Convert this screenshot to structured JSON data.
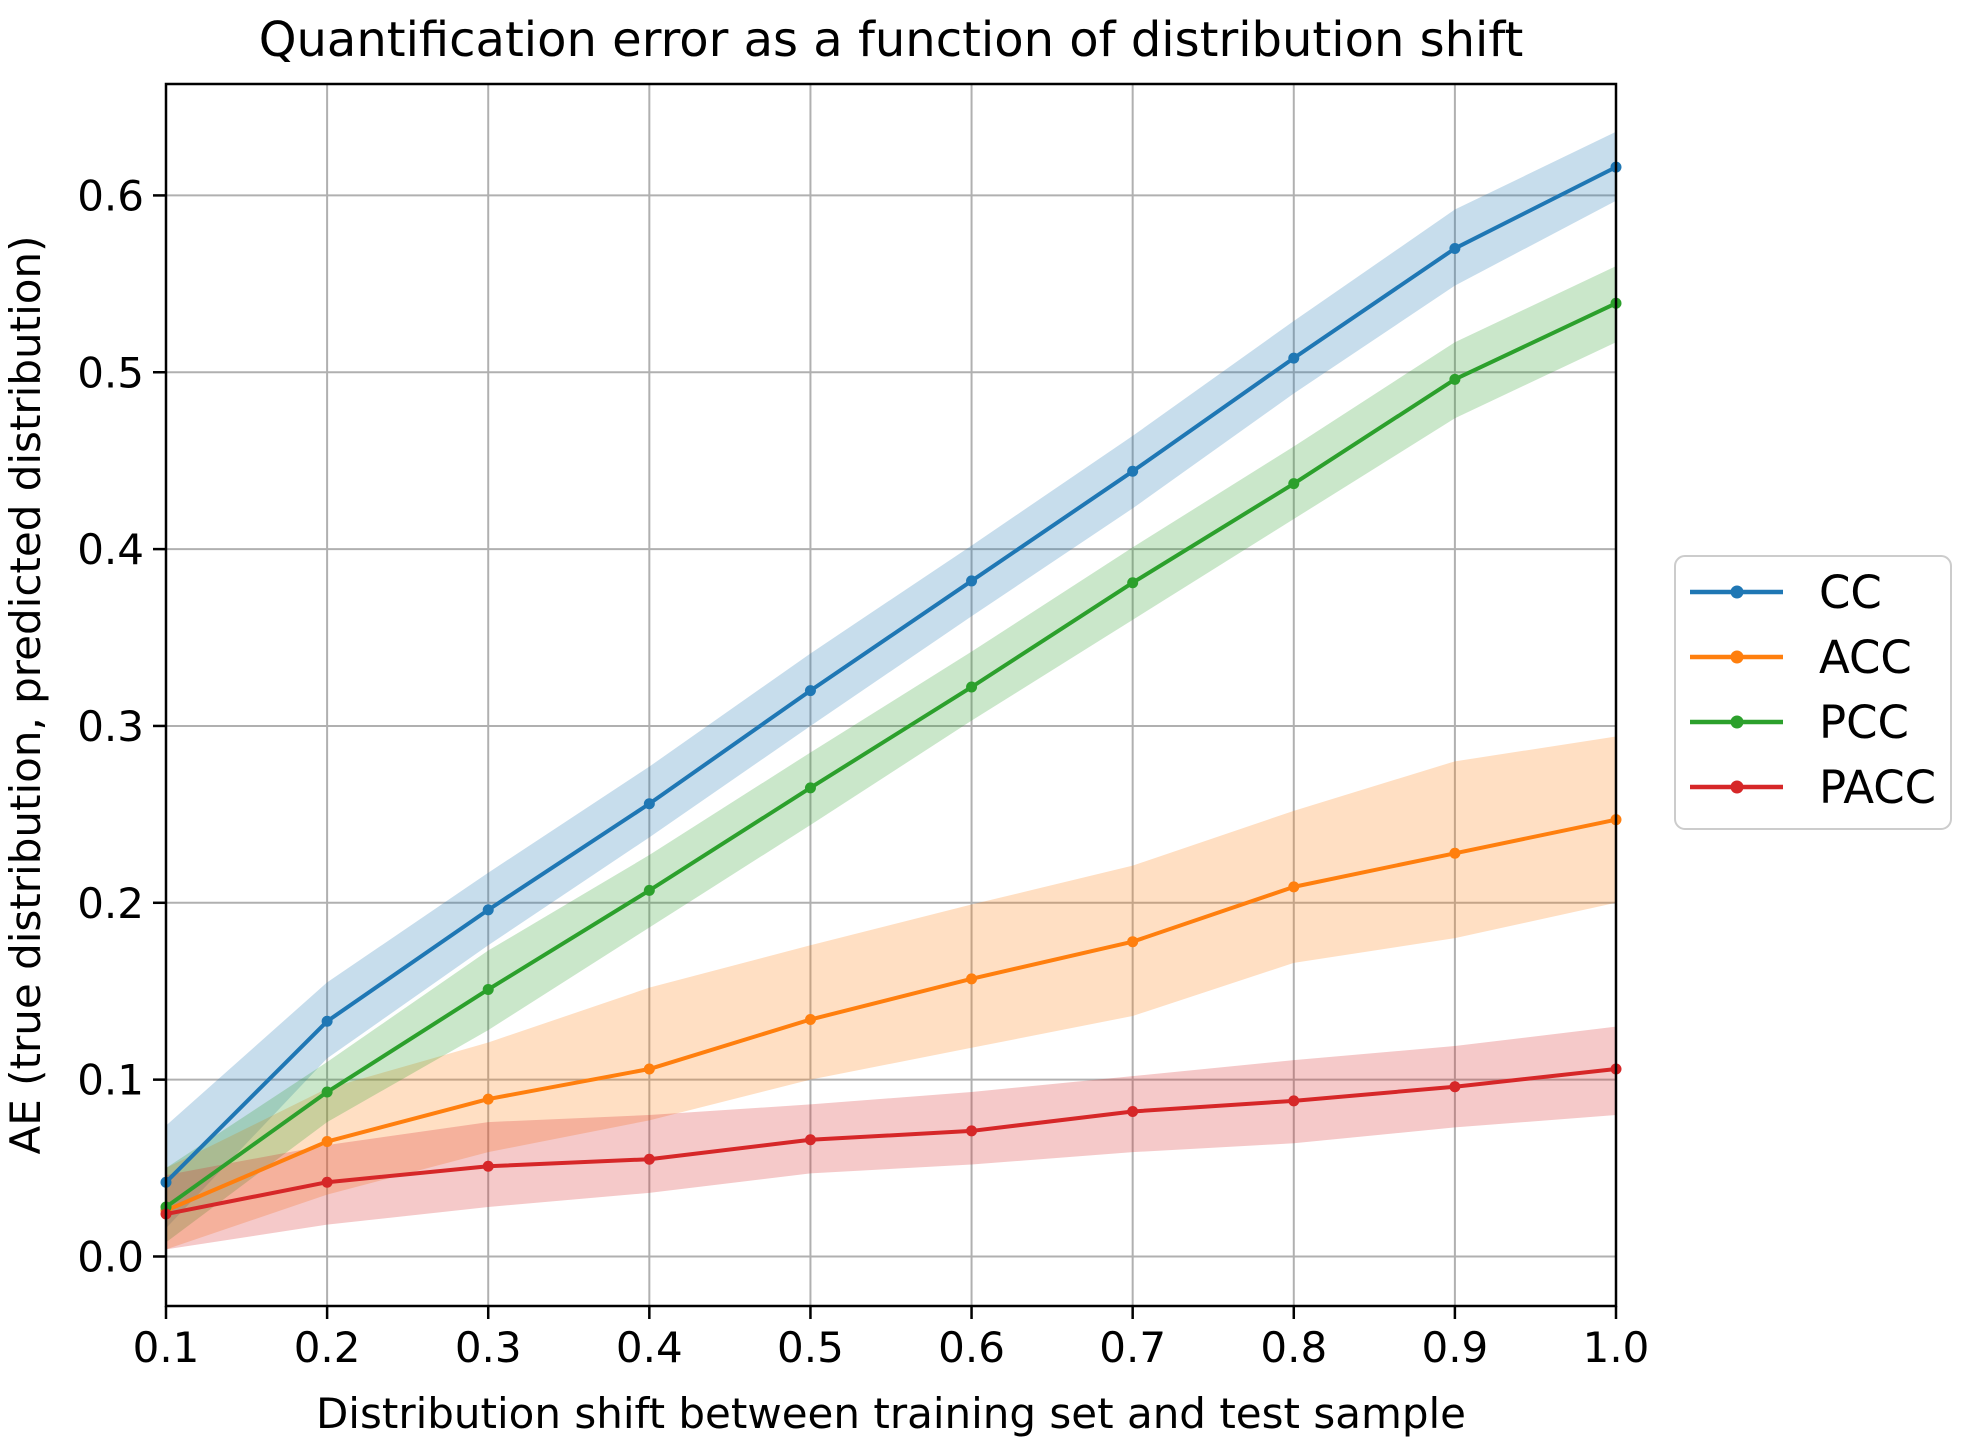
{
  "chart_data": {
    "type": "line",
    "title": "Quantification error as a function of distribution shift",
    "xlabel": "Distribution shift between training set and test sample",
    "ylabel": "AE (true distribution, predicted distribution)",
    "x": [
      0.1,
      0.2,
      0.3,
      0.4,
      0.5,
      0.6,
      0.7,
      0.8,
      0.9,
      1.0
    ],
    "xlim": [
      0.1,
      1.0
    ],
    "ylim": [
      -0.028,
      0.663
    ],
    "grid": true,
    "xticks": {
      "values": [
        0.1,
        0.2,
        0.3,
        0.4,
        0.5,
        0.6,
        0.7,
        0.8,
        0.9,
        1.0
      ],
      "labels": [
        "0.1",
        "0.2",
        "0.3",
        "0.4",
        "0.5",
        "0.6",
        "0.7",
        "0.8",
        "0.9",
        "1.0"
      ]
    },
    "yticks": {
      "values": [
        0.0,
        0.1,
        0.2,
        0.3,
        0.4,
        0.5,
        0.6
      ],
      "labels": [
        "0.0",
        "0.1",
        "0.2",
        "0.3",
        "0.4",
        "0.5",
        "0.6"
      ]
    },
    "series": [
      {
        "name": "CC",
        "color": "#1f77b4",
        "values": [
          0.042,
          0.133,
          0.196,
          0.256,
          0.32,
          0.382,
          0.444,
          0.508,
          0.57,
          0.616
        ],
        "band_low": [
          0.016,
          0.112,
          0.176,
          0.237,
          0.3,
          0.362,
          0.423,
          0.488,
          0.549,
          0.597
        ],
        "band_high": [
          0.074,
          0.155,
          0.217,
          0.277,
          0.341,
          0.402,
          0.464,
          0.529,
          0.592,
          0.636
        ]
      },
      {
        "name": "ACC",
        "color": "#ff7f0e",
        "values": [
          0.026,
          0.065,
          0.089,
          0.106,
          0.134,
          0.157,
          0.178,
          0.209,
          0.228,
          0.247
        ],
        "band_low": [
          0.004,
          0.035,
          0.059,
          0.077,
          0.1,
          0.118,
          0.136,
          0.166,
          0.18,
          0.2
        ],
        "band_high": [
          0.05,
          0.095,
          0.121,
          0.152,
          0.176,
          0.199,
          0.221,
          0.252,
          0.28,
          0.294
        ]
      },
      {
        "name": "PCC",
        "color": "#2ca02c",
        "values": [
          0.028,
          0.093,
          0.151,
          0.207,
          0.265,
          0.322,
          0.381,
          0.437,
          0.496,
          0.539
        ],
        "band_low": [
          0.008,
          0.076,
          0.128,
          0.186,
          0.244,
          0.303,
          0.36,
          0.417,
          0.474,
          0.517
        ],
        "band_high": [
          0.05,
          0.11,
          0.173,
          0.227,
          0.285,
          0.342,
          0.401,
          0.458,
          0.517,
          0.56
        ]
      },
      {
        "name": "PACC",
        "color": "#d62728",
        "values": [
          0.024,
          0.042,
          0.051,
          0.055,
          0.066,
          0.071,
          0.082,
          0.088,
          0.096,
          0.106
        ],
        "band_low": [
          0.004,
          0.018,
          0.028,
          0.036,
          0.047,
          0.052,
          0.059,
          0.064,
          0.073,
          0.08
        ],
        "band_high": [
          0.046,
          0.063,
          0.076,
          0.08,
          0.086,
          0.093,
          0.102,
          0.111,
          0.119,
          0.13
        ]
      }
    ],
    "legend": {
      "position": "outside-right",
      "entries": [
        "CC",
        "ACC",
        "PCC",
        "PACC"
      ]
    },
    "style": {
      "band_opacity": 0.25,
      "grid_color": "#b0b0b0",
      "spine_color": "#000000",
      "tick_color": "#000000",
      "text_color": "#000000",
      "background": "#ffffff",
      "legend_border": "#cccccc",
      "legend_background": "#ffffff"
    }
  }
}
